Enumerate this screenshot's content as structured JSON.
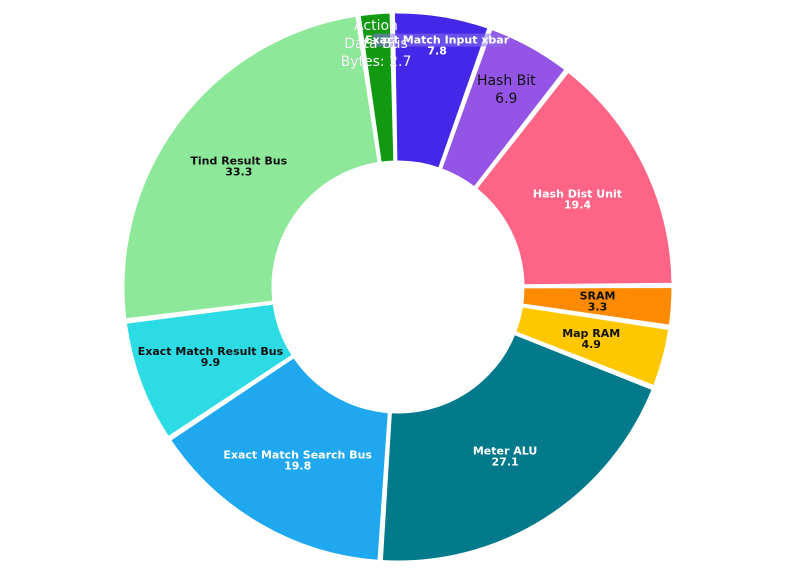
{
  "chart_data": {
    "type": "pie",
    "subtype": "donut",
    "title": "",
    "legend": "none",
    "slices": [
      {
        "name": "Exact Match Input xbar",
        "value": 7.8,
        "color": "#4328e7",
        "value_label": "7.8",
        "label_color": "#ffffff",
        "label_style": "bold"
      },
      {
        "name": "Hash Bit",
        "value": 6.9,
        "color": "#9455e6",
        "value_label": "6.9",
        "label_color": "#111111",
        "label_style": "plain"
      },
      {
        "name": "Hash Dist Unit",
        "value": 19.4,
        "color": "#fe6486",
        "value_label": "19.4",
        "label_color": "#ffffff",
        "label_style": "bold"
      },
      {
        "name": "SRAM",
        "value": 3.3,
        "color": "#fe8a01",
        "value_label": "3.3",
        "label_color": "#111111",
        "label_style": "bold"
      },
      {
        "name": "Map RAM",
        "value": 4.9,
        "color": "#fec700",
        "value_label": "4.9",
        "label_color": "#111111",
        "label_style": "bold"
      },
      {
        "name": "Meter ALU",
        "value": 27.1,
        "color": "#027a8b",
        "value_label": "27.1",
        "label_color": "#ffffff",
        "label_style": "bold"
      },
      {
        "name": "Exact Match Search Bus",
        "value": 19.8,
        "color": "#1fa8ef",
        "value_label": "19.8",
        "label_color": "#ffffff",
        "label_style": "bold"
      },
      {
        "name": "Exact Match Result Bus",
        "value": 9.9,
        "color": "#2ddbe4",
        "value_label": "9.9",
        "label_color": "#111111",
        "label_style": "bold"
      },
      {
        "name": "Tind Result Bus",
        "value": 33.3,
        "color": "#8ee89a",
        "value_label": "33.3",
        "label_color": "#111111",
        "label_style": "bold"
      },
      {
        "name": "Action Data Bus Bytes",
        "value": 2.7,
        "color": "#119a11",
        "value_label": "2.7",
        "label_color": "#ffffff",
        "label_style": "plain"
      }
    ]
  }
}
